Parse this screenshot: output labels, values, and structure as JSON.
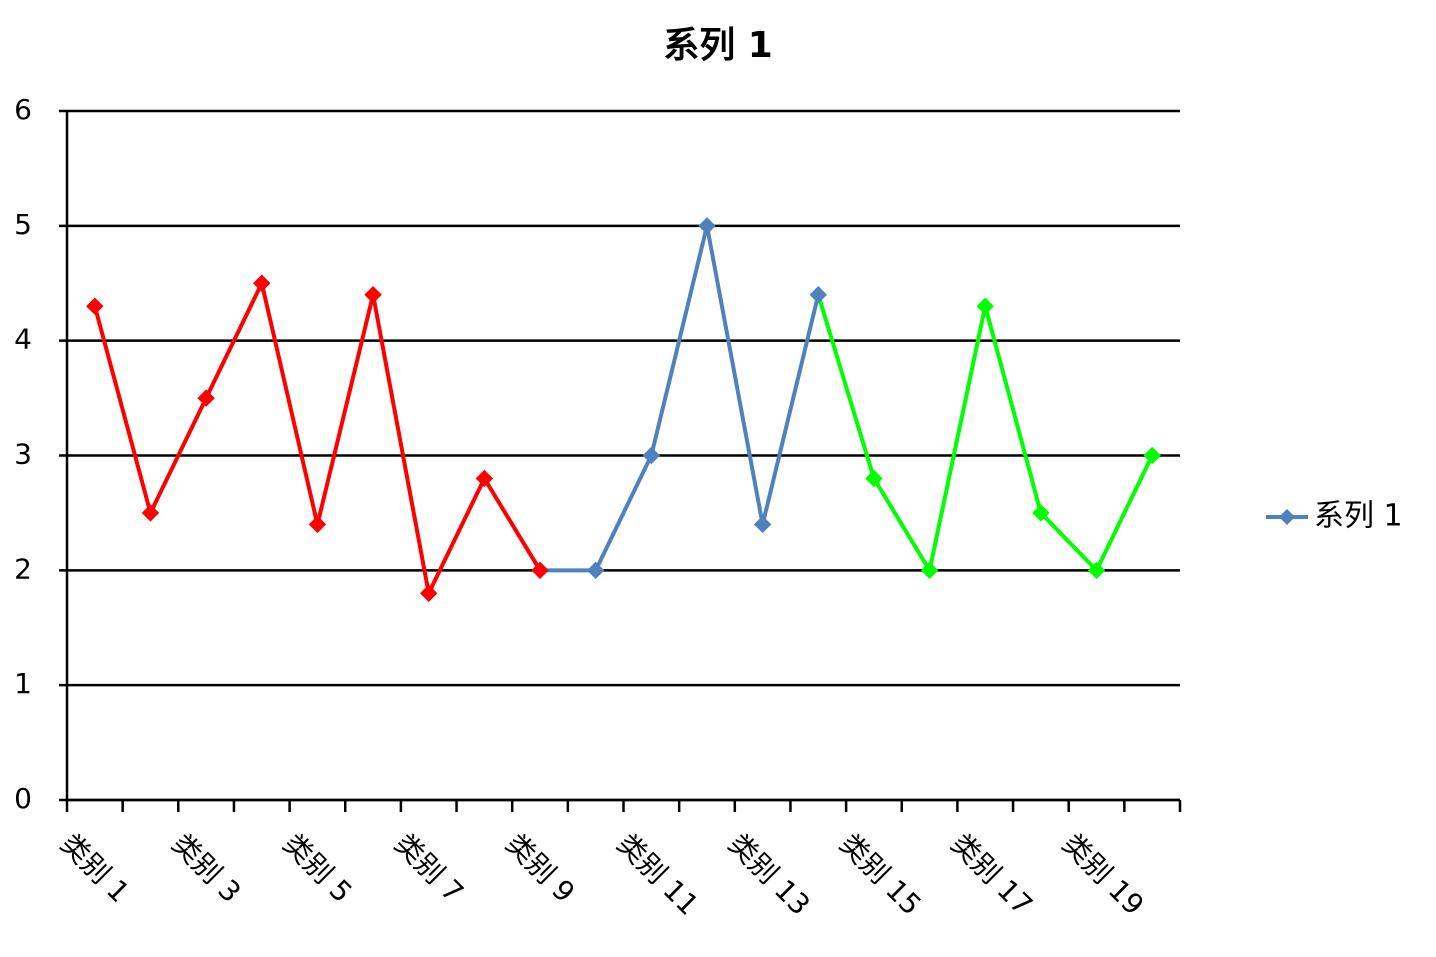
{
  "chart_data": {
    "type": "line",
    "title": "系列 1",
    "categories": [
      "类别 1",
      null,
      "类别 3",
      null,
      "类别 5",
      null,
      "类别 7",
      null,
      "类别 9",
      null,
      "类别 11",
      null,
      "类别 13",
      null,
      "类别 15",
      null,
      "类别 17",
      null,
      "类别 19",
      null
    ],
    "series": [
      {
        "name": "系列 1",
        "color": "#4f81bd",
        "values": [
          4.3,
          2.5,
          3.5,
          4.5,
          2.4,
          4.4,
          1.8,
          2.8,
          2.0,
          2.0,
          3.0,
          5.0,
          2.4,
          4.4,
          2.8,
          2.0,
          4.3,
          2.5,
          2.0,
          3.0
        ],
        "point_colors": [
          "#ff0000",
          "#ff0000",
          "#ff0000",
          "#ff0000",
          "#ff0000",
          "#ff0000",
          "#ff0000",
          "#ff0000",
          "#ff0000",
          "#4f81bd",
          "#4f81bd",
          "#4f81bd",
          "#4f81bd",
          "#4f81bd",
          "#00ff00",
          "#00ff00",
          "#00ff00",
          "#00ff00",
          "#00ff00",
          "#00ff00"
        ]
      }
    ],
    "ylim": [
      0,
      6
    ],
    "yticks": [
      0,
      1,
      2,
      3,
      4,
      5,
      6
    ],
    "grid": true,
    "legend": "right"
  }
}
